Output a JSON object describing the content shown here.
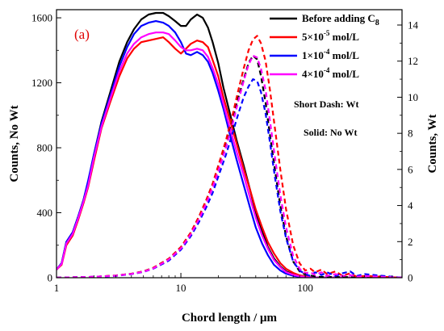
{
  "chart_data": {
    "type": "line",
    "panel_label": "(a)",
    "xlabel": "Chord length / μm",
    "ylabel_left": "Counts, No Wt",
    "ylabel_right": "Counts, Wt",
    "x_scale": "log",
    "xlim": [
      1,
      600
    ],
    "ylim_left": [
      0,
      1650
    ],
    "ylim_right": [
      0,
      14.85
    ],
    "x_ticks": [
      {
        "value": 1,
        "label": "1"
      },
      {
        "value": 10,
        "label": "10"
      },
      {
        "value": 100,
        "label": "100"
      }
    ],
    "y_ticks_left": [
      {
        "value": 0,
        "label": "0"
      },
      {
        "value": 400,
        "label": "400"
      },
      {
        "value": 800,
        "label": "800"
      },
      {
        "value": 1200,
        "label": "1200"
      },
      {
        "value": 1600,
        "label": "1600"
      }
    ],
    "y_ticks_right": [
      {
        "value": 0,
        "label": "0"
      },
      {
        "value": 2,
        "label": "2"
      },
      {
        "value": 4,
        "label": "4"
      },
      {
        "value": 6,
        "label": "6"
      },
      {
        "value": 8,
        "label": "8"
      },
      {
        "value": 10,
        "label": "10"
      },
      {
        "value": 12,
        "label": "12"
      },
      {
        "value": 14,
        "label": "14"
      }
    ],
    "legend": {
      "placement": "top-right",
      "entries": [
        {
          "key": "black",
          "label": "Before adding C",
          "subscript": "8"
        },
        {
          "key": "red",
          "prefix": "5×10",
          "exponent": "-5",
          "suffix": " mol/L"
        },
        {
          "key": "blue",
          "prefix": "1×10",
          "exponent": "-4",
          "suffix": " mol/L"
        },
        {
          "key": "magenta",
          "prefix": "4×10",
          "exponent": "-4",
          "suffix": " mol/L"
        }
      ]
    },
    "notes": [
      "Short Dash: Wt",
      "Solid: No Wt"
    ],
    "series": [
      {
        "key": "black",
        "color": "#000000",
        "style": "solid",
        "axis": "left",
        "x": [
          1,
          1.1,
          1.2,
          1.35,
          1.5,
          1.65,
          1.8,
          2,
          2.3,
          2.7,
          3.2,
          3.7,
          4.2,
          4.8,
          5.5,
          6.3,
          7.2,
          8,
          9,
          10,
          11,
          12,
          13.5,
          15,
          16.5,
          18,
          20,
          22,
          25,
          28,
          32,
          36,
          40,
          45,
          50,
          56,
          63,
          70,
          80,
          90,
          100,
          110,
          120,
          140,
          600
        ],
        "y": [
          50,
          90,
          220,
          280,
          380,
          480,
          590,
          760,
          960,
          1140,
          1330,
          1450,
          1530,
          1590,
          1620,
          1630,
          1630,
          1610,
          1580,
          1550,
          1550,
          1590,
          1620,
          1600,
          1540,
          1450,
          1320,
          1170,
          1000,
          850,
          690,
          540,
          400,
          290,
          190,
          120,
          70,
          40,
          20,
          10,
          5,
          3,
          2,
          1,
          0
        ]
      },
      {
        "key": "red",
        "color": "#ff0000",
        "style": "solid",
        "axis": "left",
        "x": [
          1,
          1.1,
          1.2,
          1.35,
          1.5,
          1.65,
          1.8,
          2,
          2.3,
          2.7,
          3.2,
          3.7,
          4.2,
          4.8,
          5.5,
          6.3,
          7.2,
          8,
          9,
          10,
          11,
          12,
          13.5,
          15,
          16.5,
          18,
          20,
          22,
          25,
          28,
          32,
          36,
          40,
          45,
          50,
          56,
          63,
          70,
          80,
          90,
          100,
          110,
          120,
          140,
          600
        ],
        "y": [
          50,
          80,
          200,
          260,
          360,
          460,
          560,
          720,
          920,
          1080,
          1240,
          1350,
          1410,
          1450,
          1460,
          1470,
          1480,
          1450,
          1410,
          1380,
          1410,
          1440,
          1460,
          1450,
          1420,
          1340,
          1240,
          1110,
          960,
          830,
          670,
          540,
          420,
          310,
          220,
          150,
          90,
          55,
          30,
          15,
          8,
          4,
          2,
          1,
          0
        ]
      },
      {
        "key": "blue",
        "color": "#0000ff",
        "style": "solid",
        "axis": "left",
        "x": [
          1,
          1.1,
          1.2,
          1.35,
          1.5,
          1.65,
          1.8,
          2,
          2.3,
          2.7,
          3.2,
          3.7,
          4.2,
          4.8,
          5.5,
          6.3,
          7.2,
          8,
          9,
          10,
          11,
          12,
          13.5,
          15,
          16.5,
          18,
          20,
          22,
          25,
          28,
          32,
          36,
          40,
          45,
          50,
          56,
          63,
          70,
          80,
          90,
          100,
          110,
          120,
          140,
          600
        ],
        "y": [
          50,
          90,
          220,
          280,
          380,
          480,
          600,
          760,
          950,
          1120,
          1300,
          1420,
          1500,
          1550,
          1570,
          1580,
          1570,
          1550,
          1510,
          1450,
          1380,
          1370,
          1390,
          1370,
          1330,
          1260,
          1150,
          1040,
          870,
          730,
          570,
          430,
          310,
          210,
          140,
          80,
          45,
          25,
          12,
          6,
          3,
          2,
          1,
          0,
          0
        ]
      },
      {
        "key": "magenta",
        "color": "#ff00ff",
        "style": "solid",
        "axis": "left",
        "x": [
          1,
          1.1,
          1.2,
          1.35,
          1.5,
          1.65,
          1.8,
          2,
          2.3,
          2.7,
          3.2,
          3.7,
          4.2,
          4.8,
          5.5,
          6.3,
          7.2,
          8,
          9,
          10,
          11,
          12,
          13.5,
          15,
          16.5,
          18,
          20,
          22,
          25,
          28,
          32,
          36,
          40,
          45,
          50,
          56,
          63,
          70,
          80,
          90,
          100,
          110,
          120,
          140,
          600
        ],
        "y": [
          50,
          85,
          210,
          270,
          370,
          470,
          570,
          740,
          930,
          1100,
          1270,
          1380,
          1440,
          1480,
          1500,
          1510,
          1510,
          1500,
          1460,
          1420,
          1400,
          1400,
          1410,
          1400,
          1360,
          1290,
          1190,
          1070,
          910,
          780,
          630,
          490,
          370,
          260,
          180,
          110,
          65,
          35,
          18,
          9,
          4,
          2,
          1,
          0,
          0
        ]
      },
      {
        "key": "black",
        "color": "#000000",
        "style": "dash",
        "axis": "right",
        "x": [
          1,
          2,
          3,
          4,
          5,
          6,
          8,
          10,
          12,
          14,
          16,
          18,
          20,
          23,
          26,
          29,
          32,
          35,
          38,
          41,
          44,
          48,
          52,
          57,
          63,
          70,
          80,
          90,
          100,
          115,
          130,
          600
        ],
        "y": [
          0,
          0.05,
          0.12,
          0.22,
          0.35,
          0.55,
          1.05,
          1.7,
          2.5,
          3.4,
          4.3,
          5.2,
          6.2,
          7.5,
          8.8,
          10,
          11,
          11.9,
          12.3,
          12.1,
          11.2,
          9.7,
          7.9,
          6,
          4,
          2.3,
          0.9,
          0.35,
          0.18,
          0.1,
          0.05,
          0
        ]
      },
      {
        "key": "red",
        "color": "#ff0000",
        "style": "dash",
        "axis": "right",
        "x": [
          1,
          2,
          3,
          4,
          5,
          6,
          8,
          10,
          12,
          14,
          16,
          18,
          20,
          23,
          26,
          29,
          32,
          35,
          38,
          41,
          44,
          48,
          52,
          57,
          63,
          70,
          80,
          90,
          100,
          110,
          120,
          135,
          150,
          175,
          200,
          230,
          260,
          300,
          600
        ],
        "y": [
          0,
          0.05,
          0.12,
          0.22,
          0.35,
          0.55,
          1.05,
          1.7,
          2.5,
          3.4,
          4.3,
          5.2,
          6.2,
          7.6,
          9,
          10.4,
          11.6,
          12.6,
          13.2,
          13.4,
          13,
          12,
          10.4,
          8.3,
          6,
          3.8,
          1.8,
          0.8,
          0.4,
          0.5,
          0.3,
          0.45,
          0.2,
          0.35,
          0.1,
          0.25,
          0.05,
          0.1,
          0
        ]
      },
      {
        "key": "blue",
        "color": "#0000ff",
        "style": "dash",
        "axis": "right",
        "x": [
          1,
          2,
          3,
          4,
          5,
          6,
          8,
          10,
          12,
          14,
          16,
          18,
          20,
          23,
          26,
          29,
          32,
          35,
          38,
          41,
          44,
          48,
          52,
          57,
          63,
          70,
          80,
          90,
          100,
          110,
          120,
          135,
          150,
          175,
          200,
          230,
          260,
          300,
          600
        ],
        "y": [
          0,
          0.05,
          0.1,
          0.2,
          0.32,
          0.5,
          0.95,
          1.55,
          2.3,
          3.1,
          3.9,
          4.7,
          5.6,
          6.8,
          8,
          9.1,
          10,
          10.6,
          11,
          10.9,
          10.3,
          9.1,
          7.5,
          5.6,
          3.7,
          2.2,
          0.9,
          0.4,
          0.2,
          0.1,
          0.3,
          0.15,
          0.3,
          0.1,
          0.25,
          0.35,
          0.1,
          0.2,
          0
        ]
      },
      {
        "key": "magenta",
        "color": "#ff00ff",
        "style": "dash",
        "axis": "right",
        "x": [
          1,
          2,
          3,
          4,
          5,
          6,
          8,
          10,
          12,
          14,
          16,
          18,
          20,
          23,
          26,
          29,
          32,
          35,
          38,
          41,
          44,
          48,
          52,
          57,
          63,
          70,
          80,
          90,
          100,
          110,
          120,
          135,
          150,
          175,
          200,
          230,
          260,
          300,
          600
        ],
        "y": [
          0,
          0.05,
          0.11,
          0.21,
          0.33,
          0.52,
          1,
          1.62,
          2.4,
          3.25,
          4.1,
          5,
          5.9,
          7.2,
          8.5,
          9.8,
          10.9,
          11.8,
          12.3,
          12.2,
          11.6,
          10.4,
          8.7,
          6.7,
          4.6,
          2.8,
          1.2,
          0.5,
          0.25,
          0.3,
          0.15,
          0.3,
          0.1,
          0.2,
          0.1,
          0.15,
          0.05,
          0.1,
          0
        ]
      }
    ]
  }
}
